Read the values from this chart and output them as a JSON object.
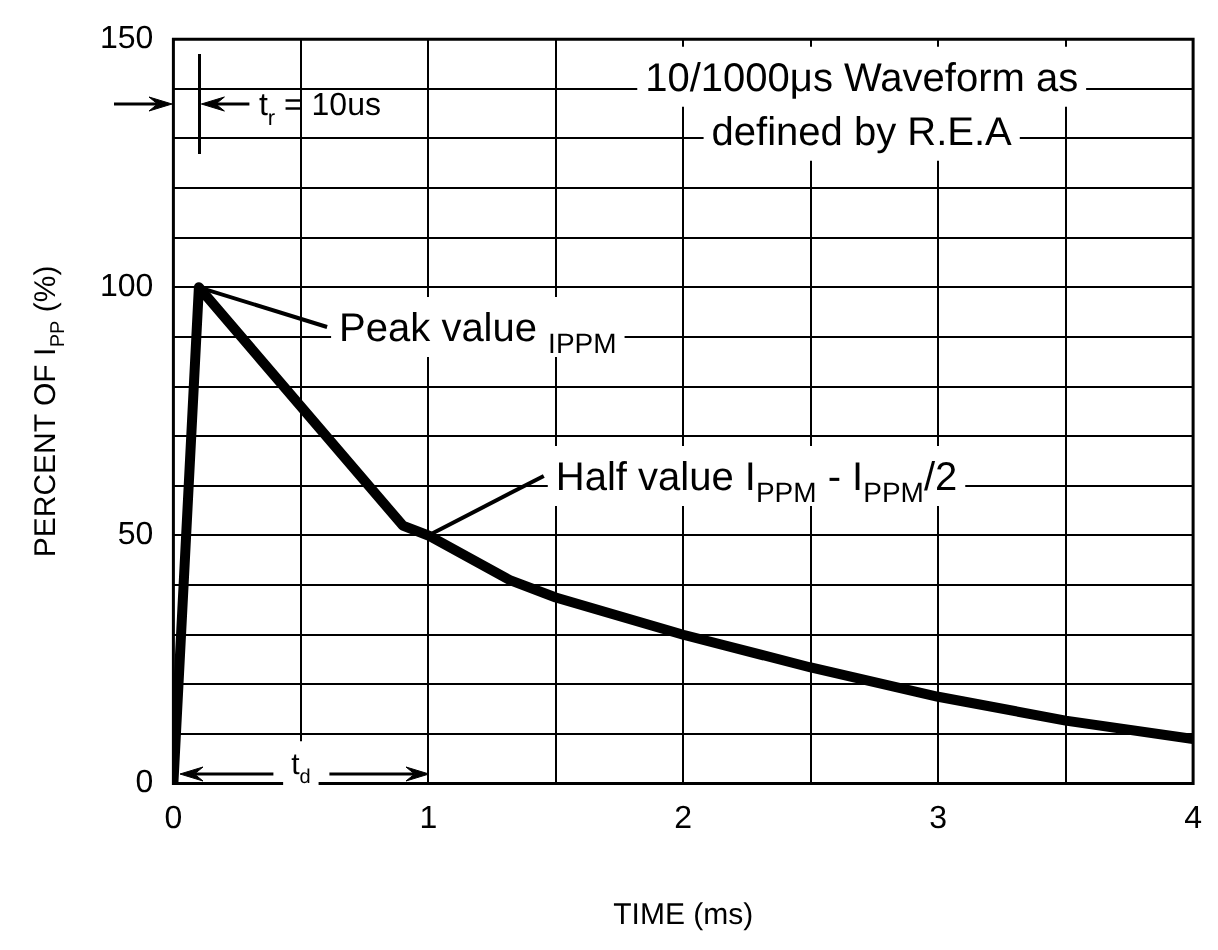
{
  "chart_data": {
    "type": "line",
    "xlabel": "TIME (ms)",
    "ylabel": "PERCENT OF I$_{PP}$ (%)",
    "x": [
      0,
      0.1,
      0.9,
      1.0,
      1.32,
      1.5,
      2.0,
      2.5,
      3.0,
      3.5,
      4.0
    ],
    "series": [
      {
        "color": "#000000",
        "values": [
          0,
          100,
          52,
          50,
          41,
          37.5,
          30,
          23.4,
          17.5,
          12.7,
          9
        ]
      }
    ],
    "xlim": [
      0,
      4
    ],
    "ylim": [
      0,
      150
    ],
    "xticks": [
      0,
      {
        "value": 0.5,
        "label": null
      },
      1,
      {
        "value": 1.5,
        "label": null
      },
      2,
      {
        "value": 2.5,
        "label": null
      },
      3,
      {
        "value": 3.5,
        "label": null
      },
      4
    ],
    "yticks": [
      0,
      {
        "value": 10,
        "label": null
      },
      {
        "value": 20,
        "label": null
      },
      {
        "value": 30,
        "label": null
      },
      {
        "value": 40,
        "label": null
      },
      50,
      {
        "value": 60,
        "label": null
      },
      {
        "value": 70,
        "label": null
      },
      {
        "value": 80,
        "label": null
      },
      {
        "value": 90,
        "label": null
      },
      100,
      {
        "value": 110,
        "label": null
      },
      {
        "value": 120,
        "label": null
      },
      {
        "value": 130,
        "label": null
      },
      {
        "value": 140,
        "label": null
      },
      150
    ],
    "grid": true,
    "legend": false,
    "marker": "none",
    "line_style": "solid",
    "annotations": [
      "t$_{r}$ = 10us",
      "10/1000μs Waveform as defined by R.E.A",
      {
        "text": "Peak value $_{IPPM}$",
        "x": 0.1,
        "y": 100
      },
      {
        "text": "Half value I$_{PPM}$ - I$_{PPM}$/2",
        "x": 1,
        "y": 50
      },
      "t$_{d}$"
    ]
  }
}
